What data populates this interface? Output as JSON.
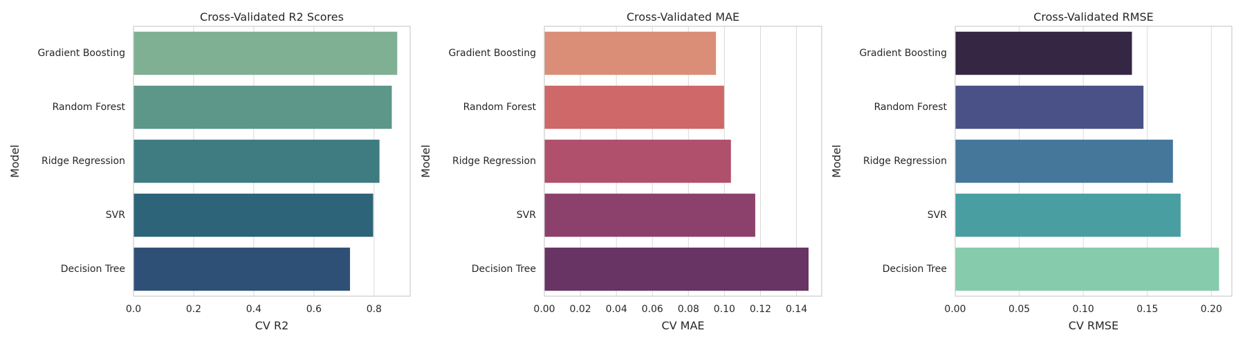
{
  "chart_data": [
    {
      "type": "bar",
      "orientation": "horizontal",
      "title": "Cross-Validated R2 Scores",
      "xlabel": "CV R2",
      "ylabel": "Model",
      "categories": [
        "Gradient Boosting",
        "Random Forest",
        "Ridge Regression",
        "SVR",
        "Decision Tree"
      ],
      "values": [
        0.877,
        0.859,
        0.818,
        0.797,
        0.72
      ],
      "xlim": [
        0,
        0.92
      ],
      "xticks": [
        0.0,
        0.2,
        0.4,
        0.6,
        0.8
      ],
      "xtick_labels": [
        "0.0",
        "0.2",
        "0.4",
        "0.6",
        "0.8"
      ],
      "grid": true,
      "colors": [
        "#7fb093",
        "#5d978a",
        "#3e7c82",
        "#2d6479",
        "#2f5076"
      ]
    },
    {
      "type": "bar",
      "orientation": "horizontal",
      "title": "Cross-Validated MAE",
      "xlabel": "CV MAE",
      "ylabel": "Model",
      "categories": [
        "Gradient Boosting",
        "Random Forest",
        "Ridge Regression",
        "SVR",
        "Decision Tree"
      ],
      "values": [
        0.0953,
        0.0998,
        0.1036,
        0.1171,
        0.1467
      ],
      "xlim": [
        0,
        0.154
      ],
      "xticks": [
        0.0,
        0.02,
        0.04,
        0.06,
        0.08,
        0.1,
        0.12,
        0.14
      ],
      "xtick_labels": [
        "0.00",
        "0.02",
        "0.04",
        "0.06",
        "0.08",
        "0.10",
        "0.12",
        "0.14"
      ],
      "grid": true,
      "colors": [
        "#da8e78",
        "#cf6869",
        "#b0506d",
        "#8c416c",
        "#673463"
      ]
    },
    {
      "type": "bar",
      "orientation": "horizontal",
      "title": "Cross-Validated RMSE",
      "xlabel": "CV RMSE",
      "ylabel": "Model",
      "categories": [
        "Gradient Boosting",
        "Random Forest",
        "Ridge Regression",
        "SVR",
        "Decision Tree"
      ],
      "values": [
        0.138,
        0.147,
        0.17,
        0.176,
        0.206
      ],
      "xlim": [
        0,
        0.216
      ],
      "xticks": [
        0.0,
        0.05,
        0.1,
        0.15,
        0.2
      ],
      "xtick_labels": [
        "0.00",
        "0.05",
        "0.10",
        "0.15",
        "0.20"
      ],
      "grid": true,
      "colors": [
        "#352744",
        "#4a5186",
        "#45779a",
        "#489ea1",
        "#86cbab"
      ]
    }
  ]
}
